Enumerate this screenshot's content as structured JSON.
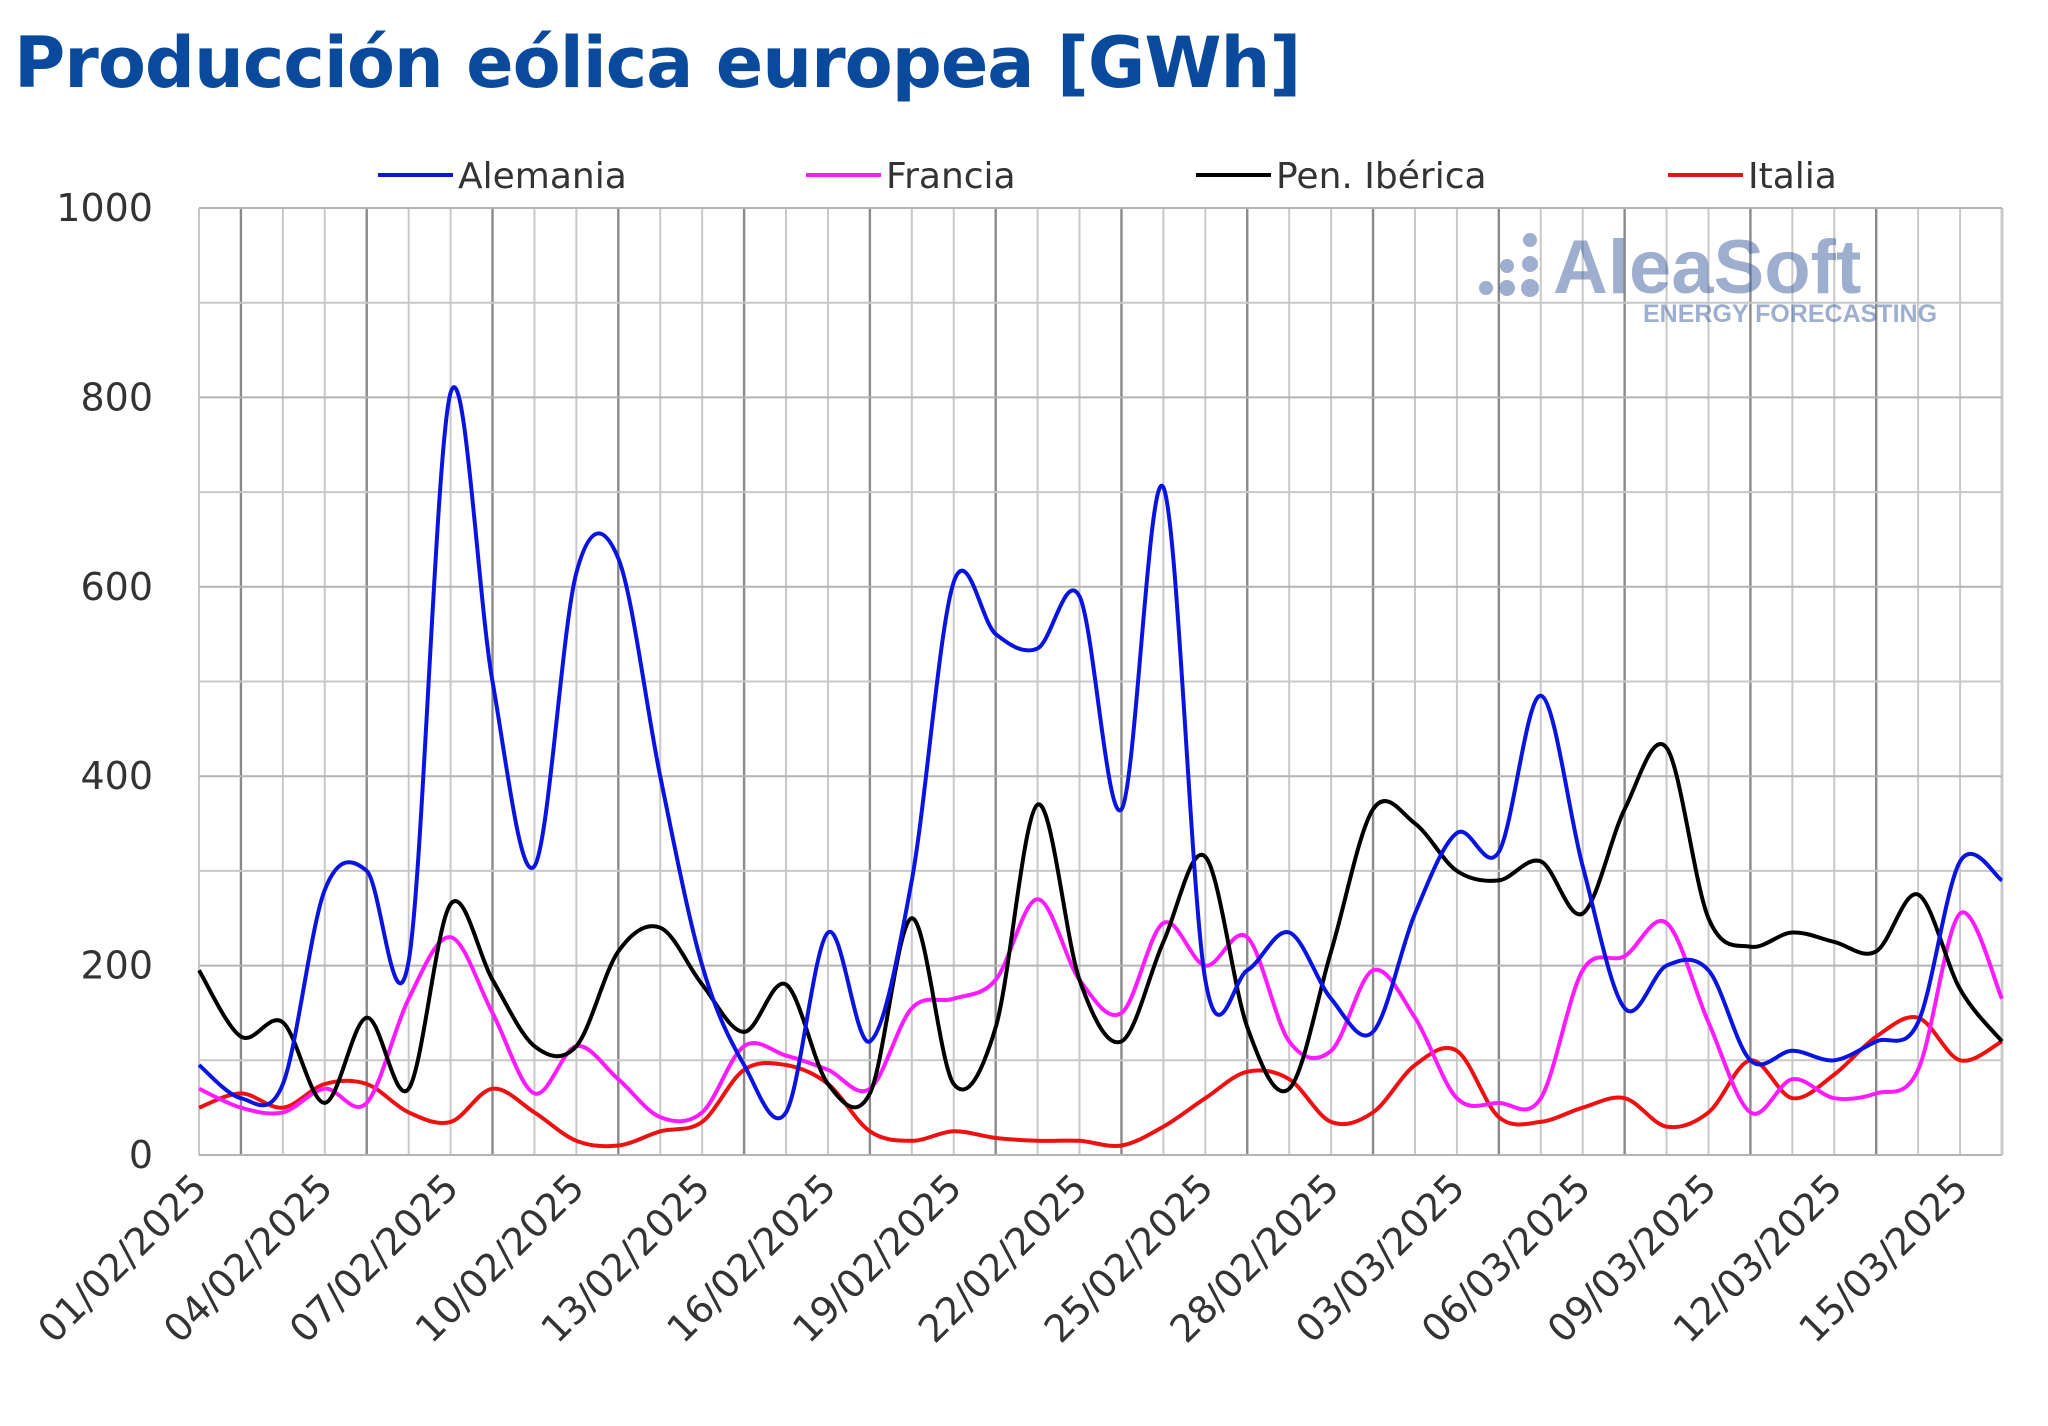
{
  "title": "Producción eólica europea [GWh]",
  "watermark": {
    "brand": "AleaSoft",
    "tagline": "ENERGY FORECASTING"
  },
  "chart_data": {
    "type": "line",
    "ylim": [
      0,
      1000
    ],
    "y_ticks": [
      "0",
      "200",
      "400",
      "600",
      "800",
      "1000"
    ],
    "x_tick_labels": [
      "01/02/2025",
      "04/02/2025",
      "07/02/2025",
      "10/02/2025",
      "13/02/2025",
      "16/02/2025",
      "19/02/2025",
      "22/02/2025",
      "25/02/2025",
      "28/02/2025",
      "03/03/2025",
      "06/03/2025",
      "09/03/2025",
      "12/03/2025",
      "15/03/2025"
    ],
    "grid": true,
    "legend_position": "top",
    "x": [
      "01/02/2025",
      "02/02/2025",
      "03/02/2025",
      "04/02/2025",
      "05/02/2025",
      "06/02/2025",
      "07/02/2025",
      "08/02/2025",
      "09/02/2025",
      "10/02/2025",
      "11/02/2025",
      "12/02/2025",
      "13/02/2025",
      "14/02/2025",
      "15/02/2025",
      "16/02/2025",
      "17/02/2025",
      "18/02/2025",
      "19/02/2025",
      "20/02/2025",
      "21/02/2025",
      "22/02/2025",
      "23/02/2025",
      "24/02/2025",
      "25/02/2025",
      "26/02/2025",
      "27/02/2025",
      "28/02/2025",
      "01/03/2025",
      "02/03/2025",
      "03/03/2025",
      "04/03/2025",
      "05/03/2025",
      "06/03/2025",
      "07/03/2025",
      "08/03/2025",
      "09/03/2025",
      "10/03/2025",
      "11/03/2025",
      "12/03/2025",
      "13/03/2025",
      "14/03/2025",
      "15/03/2025",
      "16/03/2025"
    ],
    "series": [
      {
        "name": "Alemania",
        "color": "#0a14e0",
        "values": [
          95,
          60,
          75,
          280,
          300,
          205,
          805,
          500,
          305,
          615,
          630,
          400,
          200,
          95,
          45,
          235,
          120,
          290,
          605,
          550,
          535,
          590,
          365,
          705,
          185,
          195,
          235,
          165,
          130,
          255,
          340,
          320,
          485,
          305,
          155,
          200,
          195,
          100,
          110,
          100,
          120,
          140,
          310,
          290
        ]
      },
      {
        "name": "Francia",
        "color": "#ff1aff",
        "values": [
          70,
          50,
          45,
          70,
          55,
          165,
          230,
          150,
          65,
          115,
          80,
          40,
          45,
          115,
          105,
          90,
          70,
          155,
          165,
          185,
          270,
          185,
          150,
          245,
          200,
          230,
          120,
          110,
          195,
          145,
          60,
          55,
          60,
          195,
          210,
          245,
          140,
          45,
          80,
          60,
          65,
          90,
          255,
          165
        ]
      },
      {
        "name": "Pen. Ibérica",
        "color": "#000000",
        "values": [
          195,
          125,
          140,
          55,
          145,
          70,
          265,
          185,
          115,
          115,
          215,
          240,
          180,
          130,
          180,
          75,
          65,
          250,
          75,
          135,
          370,
          185,
          120,
          225,
          315,
          135,
          70,
          215,
          365,
          350,
          300,
          290,
          310,
          255,
          365,
          430,
          250,
          220,
          235,
          225,
          215,
          275,
          175,
          120
        ]
      },
      {
        "name": "Italia",
        "color": "#ee1111",
        "values": [
          50,
          65,
          50,
          75,
          75,
          45,
          35,
          70,
          45,
          15,
          10,
          25,
          35,
          90,
          95,
          75,
          25,
          15,
          25,
          18,
          15,
          15,
          10,
          30,
          60,
          88,
          80,
          35,
          45,
          95,
          110,
          40,
          35,
          50,
          60,
          30,
          45,
          100,
          60,
          85,
          125,
          145,
          100,
          120
        ]
      }
    ]
  }
}
